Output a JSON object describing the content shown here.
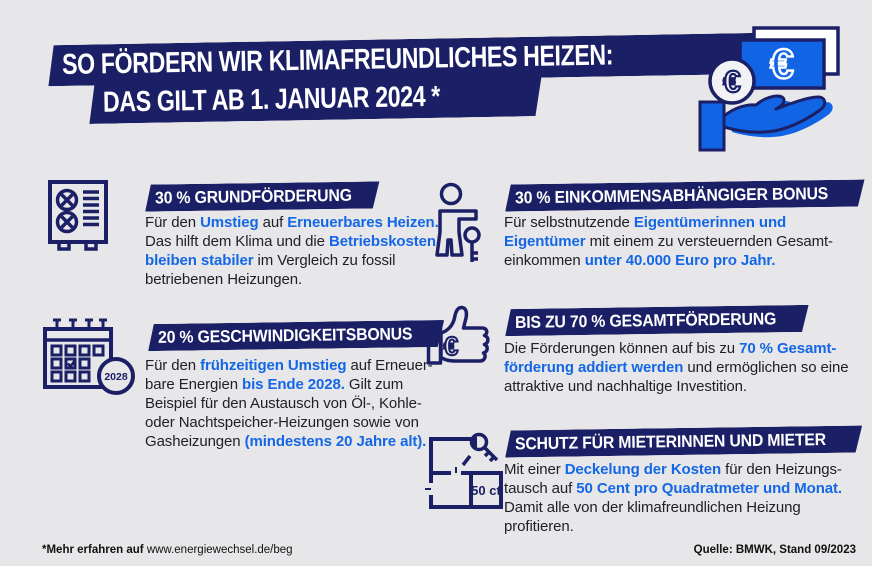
{
  "colors": {
    "background": "#e7e6e8",
    "navy": "#1b2066",
    "blue": "#1467e6",
    "text_dark": "#20202a",
    "white": "#ffffff"
  },
  "title": {
    "line1": "SO FÖRDERN WIR KLIMAFREUNDLICHES HEIZEN:",
    "line2": "DAS GILT AB 1. JANUAR 2024 *"
  },
  "header_icon": {
    "name": "hand-with-euro-money",
    "note_symbol": "€",
    "coin_symbol": "€"
  },
  "sections": [
    {
      "id": "grundfoerderung",
      "icon": "heat-pump-icon",
      "heading": "30 % GRUNDFÖRDERUNG",
      "body": [
        [
          {
            "t": "Für den "
          },
          {
            "t": "Umstieg",
            "hl": true
          },
          {
            "t": " auf "
          },
          {
            "t": "Erneuerbares Heizen.",
            "hl": true
          }
        ],
        [
          {
            "t": "Das hilft dem Klima und die "
          },
          {
            "t": "Betriebskosten",
            "hl": true
          }
        ],
        [
          {
            "t": "bleiben stabiler",
            "hl": true
          },
          {
            "t": " im Vergleich zu fossil"
          }
        ],
        [
          {
            "t": "betriebenen Heizungen."
          }
        ]
      ]
    },
    {
      "id": "einkommensbonus",
      "icon": "person-with-key-icon",
      "heading": "30 % EINKOMMENSABHÄNGIGER BONUS",
      "body": [
        [
          {
            "t": "Für selbstnutzende "
          },
          {
            "t": "Eigentümerinnen und",
            "hl": true
          }
        ],
        [
          {
            "t": "Eigentümer",
            "hl": true
          },
          {
            "t": " mit einem zu versteuernden Gesamt-"
          }
        ],
        [
          {
            "t": "einkommen "
          },
          {
            "t": "unter 40.000 Euro pro Jahr.",
            "hl": true
          }
        ]
      ]
    },
    {
      "id": "geschwindigkeitsbonus",
      "icon": "calendar-2028-icon",
      "heading": "20 % GESCHWINDIGKEITSBONUS",
      "badge": "2028",
      "body": [
        [
          {
            "t": "Für den "
          },
          {
            "t": "frühzeitigen Umstieg",
            "hl": true
          },
          {
            "t": " auf Erneuer-"
          }
        ],
        [
          {
            "t": "bare Energien "
          },
          {
            "t": "bis Ende 2028.",
            "hl": true
          },
          {
            "t": " Gilt zum"
          }
        ],
        [
          {
            "t": "Beispiel für den Austausch von Öl-, Kohle-"
          }
        ],
        [
          {
            "t": "oder Nachtspeicher-Heizungen sowie von"
          }
        ],
        [
          {
            "t": "Gasheizungen "
          },
          {
            "t": "(mindestens 20 Jahre alt).",
            "hl": true
          }
        ]
      ]
    },
    {
      "id": "gesamtfoerderung",
      "icon": "thumbs-up-euro-icon",
      "heading": "BIS ZU 70 % GESAMTFÖRDERUNG",
      "euro_symbol": "€",
      "body": [
        [
          {
            "t": "Die Förderungen können auf bis zu "
          },
          {
            "t": "70 % Gesamt-",
            "hl": true
          }
        ],
        [
          {
            "t": "förderung addiert werden",
            "hl": true
          },
          {
            "t": " und ermöglichen so eine"
          }
        ],
        [
          {
            "t": "attraktive und nachhaltige Investition."
          }
        ]
      ]
    },
    {
      "id": "mieterschutz",
      "icon": "floor-plan-key-icon",
      "heading": "SCHUTZ FÜR MIETERINNEN UND MIETER",
      "label": "50 ct",
      "body": [
        [
          {
            "t": "Mit einer "
          },
          {
            "t": "Deckelung der Kosten",
            "hl": true
          },
          {
            "t": " für den Heizungs-"
          }
        ],
        [
          {
            "t": "tausch auf "
          },
          {
            "t": "50 Cent pro Quadratmeter und Monat.",
            "hl": true
          }
        ],
        [
          {
            "t": "Damit alle von der klimafreundlichen Heizung"
          }
        ],
        [
          {
            "t": "profitieren."
          }
        ]
      ]
    }
  ],
  "footer": {
    "note_bold": "*Mehr erfahren auf ",
    "note_link": "www.energiewechsel.de/beg",
    "source": "Quelle: BMWK, Stand 09/2023"
  }
}
